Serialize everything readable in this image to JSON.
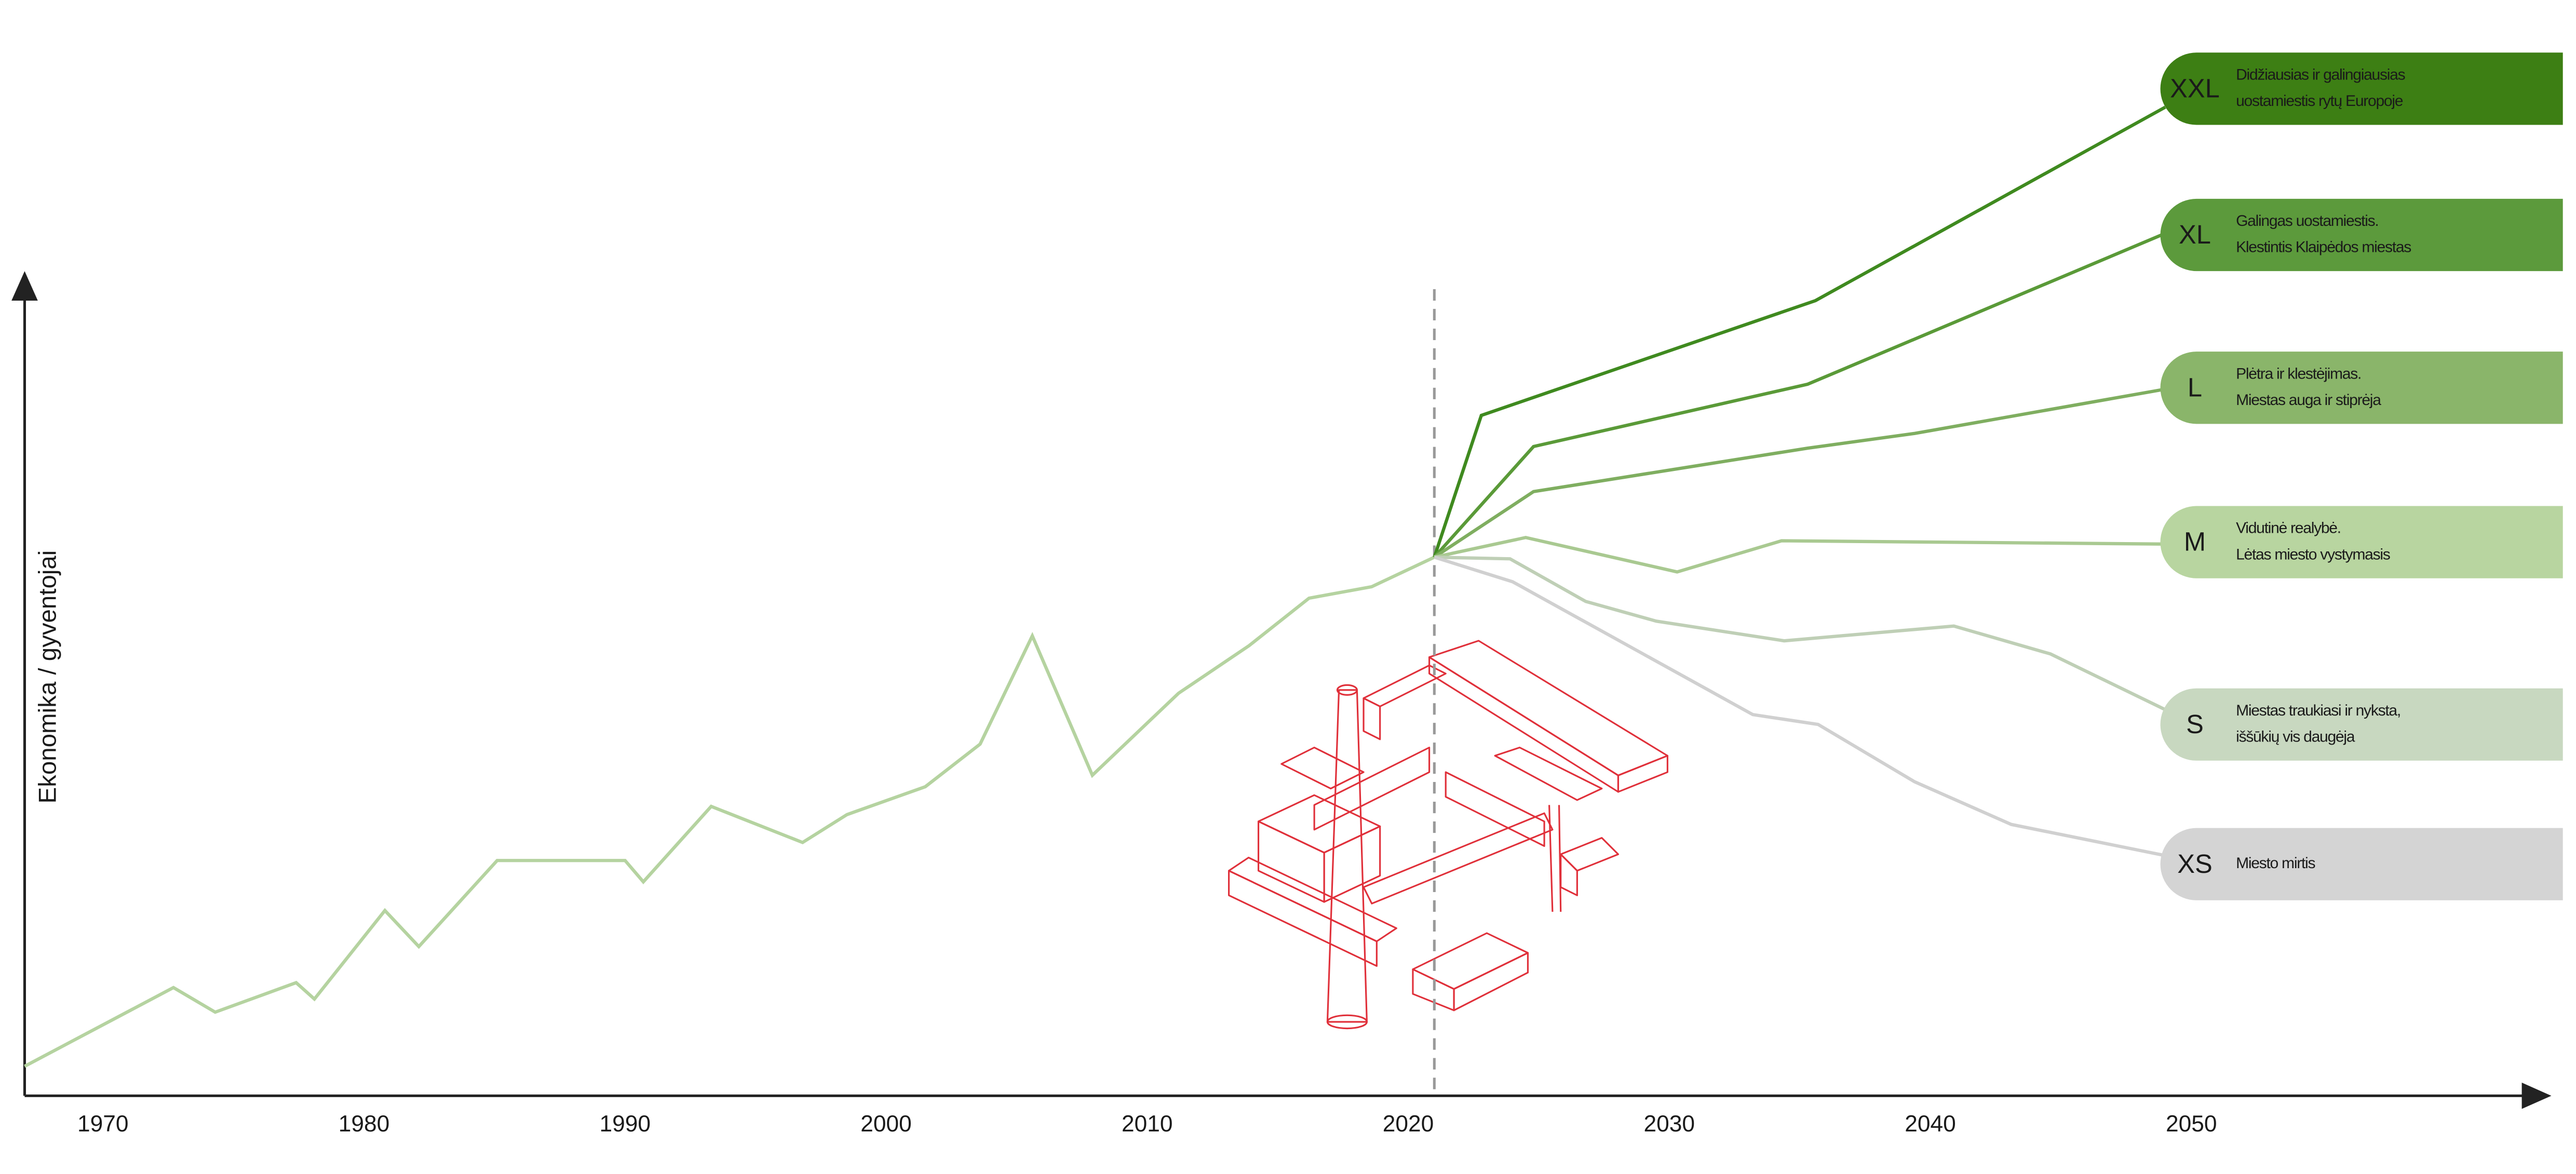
{
  "chart_data": {
    "type": "line",
    "y_label": "Ekonomika / gyventojai",
    "xlim": [
      1967,
      2063.6
    ],
    "ylim": [
      0,
      130
    ],
    "xticks": [
      1970,
      1980,
      1990,
      2000,
      2010,
      2020,
      2030,
      2040,
      2050
    ],
    "now_line": 2021,
    "history": {
      "color": "#b5d3a0",
      "x": [
        1967.0,
        1972.7,
        1974.3,
        1977.4,
        1978.1,
        1980.8,
        1982.1,
        1985.1,
        1990.0,
        1990.7,
        1993.3,
        1996.8,
        1998.5,
        2001.5,
        2003.6,
        2005.6,
        2007.9,
        2011.2,
        2013.9,
        2016.2,
        2018.6,
        2021.0
      ],
      "values": [
        3.6,
        13.2,
        10.2,
        13.8,
        11.8,
        22.6,
        18.2,
        28.7,
        28.7,
        26.1,
        35.3,
        30.9,
        34.3,
        37.7,
        42.9,
        56.1,
        39.1,
        49.1,
        54.9,
        60.7,
        62.1,
        65.7
      ]
    },
    "series": [
      {
        "name": "XXL",
        "color": "#3f8a1f",
        "box_color": "#3d7f14",
        "description": [
          "Didžiausias ir galingiausias",
          "uostamiestis rytų Europoje"
        ],
        "x": [
          2021.0,
          2022.8,
          2035.6,
          2049.0
        ],
        "values": [
          65.7,
          83.0,
          97.0,
          120.6
        ]
      },
      {
        "name": "XL",
        "color": "#5a9a38",
        "box_color": "#5c9a3c",
        "description": [
          "Galingas uostamiestis.",
          "Klestintis Klaipėdos miestas"
        ],
        "x": [
          2021.0,
          2024.8,
          2035.3,
          2049.0
        ],
        "values": [
          65.7,
          79.2,
          86.8,
          105.2
        ]
      },
      {
        "name": "L",
        "color": "#7fae60",
        "box_color": "#8ab56a",
        "description": [
          "Plėtra ir klestėjimas.",
          "Miestas auga ir stiprėja"
        ],
        "x": [
          2021.0,
          2024.8,
          2035.3,
          2039.4,
          2049.0
        ],
        "values": [
          65.7,
          73.7,
          79.0,
          80.8,
          86.2
        ]
      },
      {
        "name": "M",
        "color": "#a9c991",
        "box_color": "#b8d5a0",
        "description": [
          "Vidutinė realybė.",
          "Lėtas miesto vystymasis"
        ],
        "x": [
          2021.0,
          2024.5,
          2030.3,
          2034.3,
          2049.0
        ],
        "values": [
          65.7,
          68.1,
          63.9,
          67.7,
          67.3
        ]
      },
      {
        "name": "S",
        "color": "#bfcfb6",
        "box_color": "#c8d8c0",
        "description": [
          "Miestas traukiasi ir nyksta,",
          "iššūkių vis daugėja"
        ],
        "x": [
          2021.0,
          2023.9,
          2026.8,
          2029.5,
          2034.4,
          2040.9,
          2044.6,
          2049.0
        ],
        "values": [
          65.7,
          65.5,
          60.3,
          57.9,
          55.5,
          57.3,
          53.9,
          47.1
        ]
      },
      {
        "name": "XS",
        "color": "#d0d0d0",
        "box_color": "#d4d4d4",
        "description": [
          "Miesto mirtis"
        ],
        "x": [
          2021.0,
          2024.0,
          2033.2,
          2035.7,
          2039.4,
          2043.1,
          2049.0
        ],
        "values": [
          65.7,
          62.7,
          46.5,
          45.3,
          38.3,
          33.1,
          29.3
        ]
      }
    ]
  }
}
